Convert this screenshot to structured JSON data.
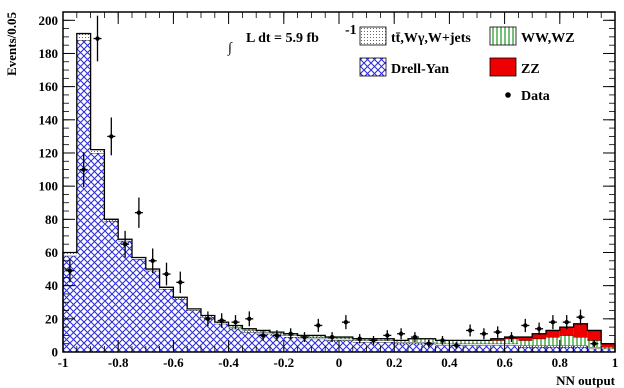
{
  "chart_data": {
    "type": "bar",
    "stacked": true,
    "xlabel": "NN output",
    "ylabel": "Events/0.05",
    "xlim": [
      -1,
      1
    ],
    "ylim": [
      0,
      205
    ],
    "xticks": [
      -1,
      -0.8,
      -0.6,
      -0.4,
      -0.2,
      0,
      0.2,
      0.4,
      0.6,
      0.8,
      1
    ],
    "xtick_labels": [
      "-1",
      "-0.8",
      "-0.6",
      "-0.4",
      "-0.2",
      "0",
      "0.2",
      "0.4",
      "0.6",
      "0.8",
      "1"
    ],
    "yticks": [
      0,
      20,
      40,
      60,
      80,
      100,
      120,
      140,
      160,
      180,
      200
    ],
    "ytick_labels": [
      "0",
      "20",
      "40",
      "60",
      "80",
      "100",
      "120",
      "140",
      "160",
      "180",
      "200"
    ],
    "bin_width": 0.05,
    "bin_edges_start": -1,
    "annotation": {
      "integral_symbol": "∫",
      "text": "L dt = 5.9 fb",
      "superscript": "-1"
    },
    "legend_position": "top-right",
    "series": [
      {
        "name": "Drell-Yan",
        "key": "dy",
        "color": "#3a3ad6",
        "pattern": "crosshatch",
        "values": [
          58,
          188,
          120,
          79,
          67,
          56,
          49,
          38,
          32,
          25,
          21,
          17,
          14,
          12,
          11,
          10,
          9,
          8,
          8,
          7,
          7,
          6,
          6,
          6,
          5,
          5,
          5,
          4,
          4,
          4,
          4,
          4,
          4,
          3,
          3,
          3,
          3,
          3,
          2,
          2
        ]
      },
      {
        "name": "tt̄,Wγ,W+jets",
        "key": "ttbar",
        "color": "#bbbbbb",
        "pattern": "dots",
        "values": [
          2,
          4,
          2,
          1,
          1,
          1,
          1,
          1,
          1,
          1,
          1,
          1,
          1,
          1,
          1,
          1,
          1,
          1,
          1,
          1,
          1,
          1,
          1,
          1,
          1,
          1,
          1,
          1,
          1,
          1,
          1,
          1,
          1,
          1,
          1,
          1,
          1,
          1,
          1,
          0
        ]
      },
      {
        "name": "WW,WZ",
        "key": "ww",
        "color": "#2e9e2e",
        "pattern": "vertical-lines",
        "values": [
          0,
          0,
          0,
          0,
          0,
          0,
          0,
          0,
          0,
          0,
          0,
          0,
          1,
          1,
          1,
          1,
          1,
          1,
          1,
          1,
          1,
          1,
          1,
          1,
          1,
          2,
          2,
          2,
          2,
          2,
          2,
          2,
          3,
          3,
          4,
          5,
          6,
          5,
          4,
          1
        ]
      },
      {
        "name": "ZZ",
        "key": "zz",
        "color": "#ee0000",
        "pattern": "solid",
        "values": [
          0,
          0,
          0,
          0,
          0,
          0,
          0,
          0,
          0,
          0,
          0,
          0,
          0,
          0,
          0,
          0,
          0,
          0,
          0,
          0,
          0,
          0,
          0,
          0,
          0,
          0,
          0,
          0,
          0,
          0,
          0,
          1,
          1,
          2,
          3,
          4,
          5,
          8,
          6,
          2
        ]
      }
    ],
    "data_points": {
      "name": "Data",
      "x": [
        -0.975,
        -0.925,
        -0.875,
        -0.825,
        -0.775,
        -0.725,
        -0.675,
        -0.625,
        -0.575,
        -0.475,
        -0.425,
        -0.375,
        -0.325,
        -0.275,
        -0.225,
        -0.175,
        -0.125,
        -0.075,
        -0.025,
        0.025,
        0.075,
        0.125,
        0.175,
        0.225,
        0.275,
        0.325,
        0.375,
        0.425,
        0.475,
        0.525,
        0.575,
        0.625,
        0.675,
        0.725,
        0.775,
        0.825,
        0.875,
        0.925
      ],
      "y": [
        49,
        110,
        189,
        130,
        65,
        84,
        55,
        47,
        42,
        20,
        19,
        18,
        20,
        10,
        10,
        11,
        9,
        16,
        9,
        18,
        8,
        7,
        10,
        11,
        9,
        5,
        7,
        4,
        13,
        11,
        12,
        9,
        16,
        14,
        18,
        18,
        21,
        5
      ]
    }
  }
}
